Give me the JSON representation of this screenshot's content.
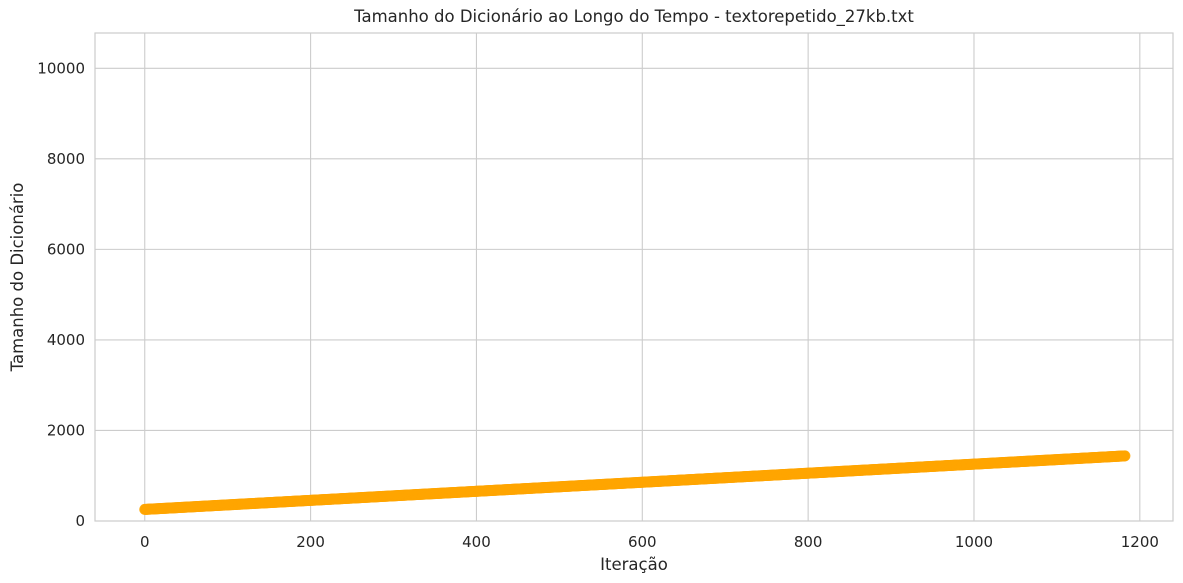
{
  "chart_data": {
    "type": "scatter",
    "title": "Tamanho do Dicionário ao Longo do Tempo - textorepetido_27kb.txt",
    "xlabel": "Iteração",
    "ylabel": "Tamanho do Dicionário",
    "xlim": [
      -60,
      1240
    ],
    "ylim": [
      0,
      10780
    ],
    "xticks": [
      0,
      200,
      400,
      600,
      800,
      1000,
      1200
    ],
    "yticks": [
      0,
      2000,
      4000,
      6000,
      8000,
      10000
    ],
    "grid": true,
    "legend": "none",
    "series": [
      {
        "x_start": 0,
        "x_end": 1182,
        "x_step": 1,
        "y_start": 256,
        "y_end": 1438,
        "color": "#ffa500"
      }
    ]
  }
}
